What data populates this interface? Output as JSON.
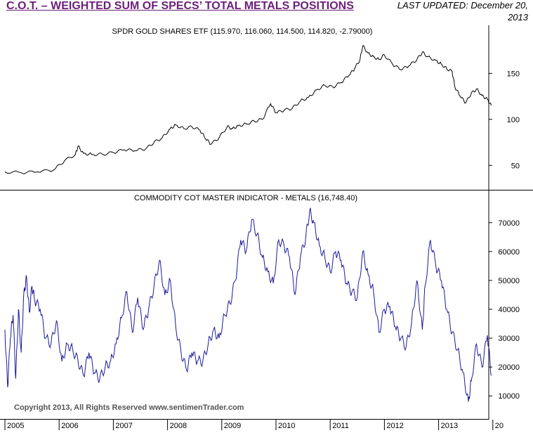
{
  "header": {
    "title": "C.O.T. – WEIGHTED SUM OF SPECS’ TOTAL METALS POSITIONS",
    "updated_line1": "LAST UPDATED:  December 20,",
    "updated_line2": "2013"
  },
  "footer": {
    "copyright": "Copyright 2013, All Rights Reserved  www.sentimenTrader.com"
  },
  "colors": {
    "title": "#6b1f7a",
    "gold_line": "#000000",
    "cot_line": "#1a1a9a"
  },
  "chart_data": [
    {
      "type": "line",
      "title": "SPDR GOLD SHARES ETF (115.970, 116.060, 114.500, 114.820, -2.79000)",
      "ylim": [
        25,
        190
      ],
      "yticks": [
        50,
        100,
        150
      ],
      "series": [
        {
          "x": [
            2005.0,
            2005.3,
            2005.6,
            2005.9,
            2006.1,
            2006.3,
            2006.35,
            2006.45,
            2006.6,
            2006.8,
            2007.0,
            2007.2,
            2007.4,
            2007.6,
            2007.75,
            2007.9,
            2008.05,
            2008.15,
            2008.3,
            2008.45,
            2008.6,
            2008.7,
            2008.8,
            2008.95,
            2009.1,
            2009.2,
            2009.3,
            2009.45,
            2009.6,
            2009.75,
            2009.9,
            2010.0,
            2010.15,
            2010.3,
            2010.45,
            2010.6,
            2010.75,
            2010.9,
            2011.05,
            2011.2,
            2011.35,
            2011.45,
            2011.55,
            2011.6,
            2011.7,
            2011.8,
            2011.9,
            2012.0,
            2012.15,
            2012.3,
            2012.45,
            2012.6,
            2012.7,
            2012.8,
            2012.95,
            2013.05,
            2013.15,
            2013.25,
            2013.3,
            2013.4,
            2013.5,
            2013.6,
            2013.7,
            2013.8,
            2013.9,
            2013.97
          ],
          "values": [
            43,
            42,
            43,
            45,
            55,
            62,
            71,
            63,
            62,
            62,
            64,
            67,
            66,
            68,
            75,
            80,
            90,
            94,
            90,
            92,
            88,
            79,
            73,
            80,
            92,
            90,
            93,
            95,
            98,
            100,
            117,
            107,
            110,
            112,
            120,
            124,
            132,
            137,
            135,
            140,
            148,
            155,
            165,
            180,
            172,
            168,
            165,
            170,
            160,
            154,
            158,
            165,
            173,
            168,
            164,
            160,
            155,
            152,
            135,
            125,
            118,
            128,
            133,
            126,
            122,
            115
          ]
        }
      ]
    },
    {
      "type": "line",
      "title": "COMMODITY COT MASTER INDICATOR - METALS (16,748.40)",
      "ylim": [
        3000,
        77000
      ],
      "yticks": [
        10000,
        20000,
        30000,
        40000,
        50000,
        60000,
        70000
      ],
      "xticks": [
        "2005",
        "2006",
        "2007",
        "2008",
        "2009",
        "2010",
        "2011",
        "2012",
        "2013",
        "20"
      ],
      "series": [
        {
          "x": [
            2005.0,
            2005.05,
            2005.1,
            2005.15,
            2005.2,
            2005.25,
            2005.3,
            2005.35,
            2005.4,
            2005.45,
            2005.5,
            2005.55,
            2005.65,
            2005.75,
            2005.85,
            2005.95,
            2006.05,
            2006.15,
            2006.25,
            2006.35,
            2006.45,
            2006.55,
            2006.65,
            2006.75,
            2006.85,
            2006.95,
            2007.05,
            2007.15,
            2007.25,
            2007.35,
            2007.45,
            2007.55,
            2007.65,
            2007.75,
            2007.85,
            2007.95,
            2008.05,
            2008.15,
            2008.25,
            2008.35,
            2008.45,
            2008.55,
            2008.65,
            2008.75,
            2008.85,
            2008.95,
            2009.05,
            2009.15,
            2009.25,
            2009.35,
            2009.45,
            2009.55,
            2009.65,
            2009.75,
            2009.85,
            2009.95,
            2010.05,
            2010.15,
            2010.25,
            2010.35,
            2010.45,
            2010.55,
            2010.62,
            2010.7,
            2010.8,
            2010.9,
            2011.0,
            2011.1,
            2011.2,
            2011.3,
            2011.4,
            2011.5,
            2011.6,
            2011.7,
            2011.8,
            2011.9,
            2012.0,
            2012.1,
            2012.2,
            2012.3,
            2012.4,
            2012.5,
            2012.6,
            2012.7,
            2012.75,
            2012.85,
            2012.95,
            2013.05,
            2013.15,
            2013.25,
            2013.35,
            2013.45,
            2013.55,
            2013.6,
            2013.7,
            2013.8,
            2013.9,
            2013.97
          ],
          "values": [
            33000,
            13000,
            30000,
            38000,
            16000,
            40000,
            25000,
            46000,
            51000,
            39000,
            48000,
            43000,
            40000,
            30000,
            28000,
            36000,
            22000,
            28000,
            26000,
            22000,
            17000,
            25000,
            18000,
            16000,
            20000,
            22000,
            28000,
            37000,
            46000,
            32000,
            44000,
            33000,
            40000,
            48000,
            57000,
            45000,
            50000,
            34000,
            25000,
            19000,
            25000,
            22000,
            22000,
            28000,
            33000,
            30000,
            38000,
            42000,
            50000,
            64000,
            60000,
            71000,
            66000,
            58000,
            53000,
            49000,
            64000,
            62000,
            58000,
            45000,
            58000,
            65000,
            74000,
            70000,
            62000,
            58000,
            53000,
            60000,
            57000,
            49000,
            46000,
            44000,
            60000,
            52000,
            46000,
            32000,
            40000,
            41000,
            34000,
            30000,
            27000,
            35000,
            50000,
            33000,
            48000,
            64000,
            55000,
            50000,
            40000,
            32000,
            26000,
            18000,
            8000,
            15000,
            28000,
            20000,
            31000,
            17000
          ]
        }
      ]
    }
  ]
}
